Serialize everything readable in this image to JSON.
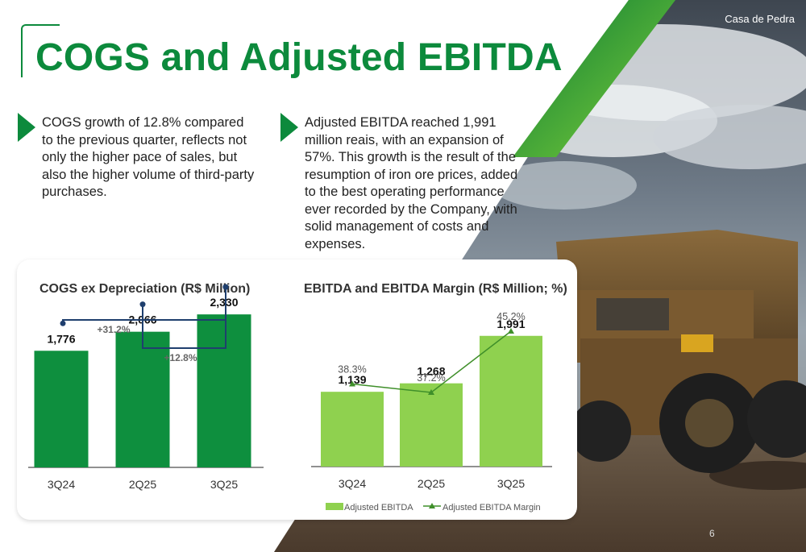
{
  "brand": "Casa de Pedra",
  "title": "COGS and Adjusted EBITDA",
  "bullets": [
    "COGS growth of 12.8% compared to the previous quarter, reflects not only the higher pace of sales, but also the higher volume of third-party purchases.",
    "Adjusted EBITDA reached 1,991 million reais, with an expansion of 57%. This growth is the result of the resumption of iron ore prices, added to the best operating performance ever recorded by the Company, with solid management of costs and expenses."
  ],
  "colors": {
    "brand_green": "#0c8a3c",
    "cogs_bar": "#0e8f3e",
    "ebitda_bar": "#8fd14f",
    "margin_line": "#3f8f2a",
    "bracket": "#1f3f6e"
  },
  "chart_data": [
    {
      "type": "bar",
      "title": "COGS ex Depreciation (R$ Million)",
      "categories": [
        "3Q24",
        "2Q25",
        "3Q25"
      ],
      "values": [
        1776,
        2066,
        2330
      ],
      "value_labels": [
        "1,776",
        "2,066",
        "2,330"
      ],
      "annotations": [
        {
          "text": "+31.2%",
          "from": "3Q24",
          "to": "3Q25"
        },
        {
          "text": "+12.8%",
          "from": "2Q25",
          "to": "3Q25"
        }
      ],
      "ylim": [
        0,
        2700
      ]
    },
    {
      "type": "bar",
      "title": "EBITDA and EBITDA Margin (R$ Million; %)",
      "categories": [
        "3Q24",
        "2Q25",
        "3Q25"
      ],
      "series": [
        {
          "name": "Adjusted EBITDA",
          "type": "bar",
          "values": [
            1139,
            1268,
            1991
          ],
          "value_labels": [
            "1,139",
            "1,268",
            "1,991"
          ]
        },
        {
          "name": "Adjusted EBITDA Margin",
          "type": "line",
          "values": [
            38.3,
            37.2,
            45.2
          ],
          "value_labels": [
            "38.3%",
            "37.2%",
            "45.2%"
          ]
        }
      ],
      "ylim": [
        0,
        2700
      ],
      "y2lim": [
        0,
        55
      ],
      "legend": "bottom"
    }
  ],
  "page_number": "6"
}
